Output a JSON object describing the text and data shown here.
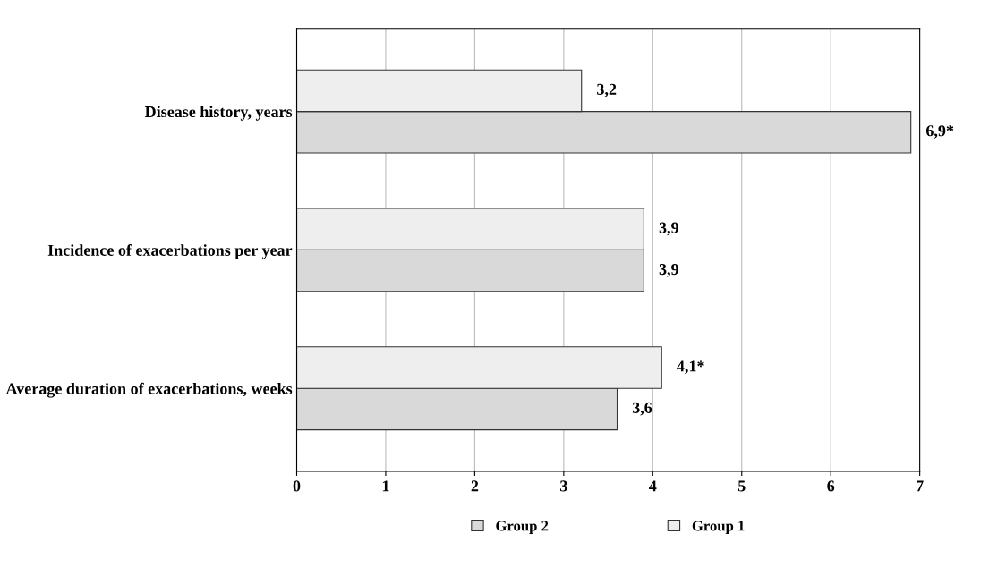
{
  "chart_data": {
    "type": "bar",
    "orientation": "horizontal",
    "categories": [
      "Disease history, years",
      "Incidence of exacerbations per year",
      "Average duration of exacerbations, weeks"
    ],
    "series": [
      {
        "name": "Group 2",
        "color": "#d9d9d9",
        "values": [
          6.9,
          3.9,
          3.6
        ],
        "value_labels": [
          "6,9*",
          "3,9",
          "3,6"
        ]
      },
      {
        "name": "Group 1",
        "color": "#eeeeee",
        "values": [
          3.2,
          3.9,
          4.1
        ],
        "value_labels": [
          "3,2",
          "3,9",
          "4,1*"
        ]
      }
    ],
    "xlim": [
      0,
      7
    ],
    "xticks": [
      0,
      1,
      2,
      3,
      4,
      5,
      6,
      7
    ],
    "grid": "x",
    "legend": "bottom"
  }
}
